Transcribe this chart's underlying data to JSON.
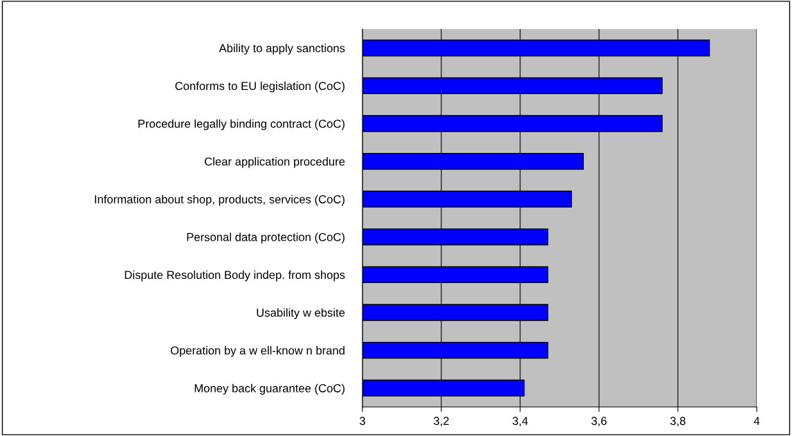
{
  "chart_data": {
    "type": "bar",
    "orientation": "horizontal",
    "categories": [
      "Ability to apply sanctions",
      "Conforms to EU legislation (CoC)",
      "Procedure legally binding contract (CoC)",
      "Clear application procedure",
      "Information about shop, products, services (CoC)",
      "Personal data protection (CoC)",
      "Dispute Resolution Body indep. from shops",
      "Usability w ebsite",
      "Operation by a w ell-know n brand",
      "Money back guarantee (CoC)"
    ],
    "values": [
      3.88,
      3.76,
      3.76,
      3.56,
      3.53,
      3.47,
      3.47,
      3.47,
      3.47,
      3.41
    ],
    "color": "#0000ff",
    "xlim": [
      3,
      4
    ],
    "xticks": [
      3,
      {
        "value": 3.2,
        "label": "3,2"
      },
      {
        "value": 3.4,
        "label": "3,4"
      },
      {
        "value": 3.6,
        "label": "3,6"
      },
      {
        "value": 3.8,
        "label": "3,8"
      },
      4
    ],
    "grid": "x"
  }
}
